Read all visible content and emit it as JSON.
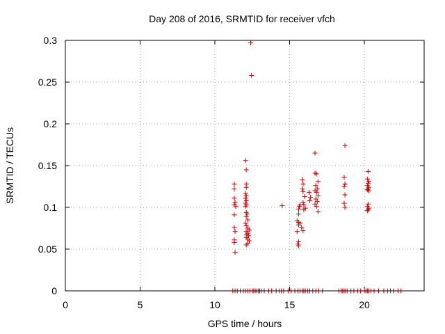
{
  "chart_data": {
    "type": "scatter",
    "title": "Day 208 of 2016, SRMTID for receiver vfch",
    "xlabel": "GPS time / hours",
    "ylabel": "SRMTID / TECUs",
    "xlim": [
      0,
      24
    ],
    "ylim": [
      0,
      0.3
    ],
    "x_ticks": [
      0,
      5,
      10,
      15,
      20
    ],
    "x_tick_labels": [
      "0",
      "5",
      "10",
      "15",
      "20"
    ],
    "y_ticks": [
      0,
      0.05,
      0.1,
      0.15,
      0.2,
      0.25,
      0.3
    ],
    "y_tick_labels": [
      "0",
      "0.05",
      "0.1",
      "0.15",
      "0.2",
      "0.25",
      "0.3"
    ],
    "grid": true,
    "marker": "+",
    "color": "#cc0000",
    "series": [
      {
        "name": "SRMTID",
        "points": [
          [
            11.3,
            0.128
          ],
          [
            11.3,
            0.122
          ],
          [
            11.3,
            0.111
          ],
          [
            11.35,
            0.106
          ],
          [
            11.3,
            0.103
          ],
          [
            11.4,
            0.101
          ],
          [
            11.3,
            0.091
          ],
          [
            11.3,
            0.076
          ],
          [
            11.35,
            0.071
          ],
          [
            11.3,
            0.061
          ],
          [
            11.3,
            0.058
          ],
          [
            11.35,
            0.046
          ],
          [
            12.05,
            0.156
          ],
          [
            12.1,
            0.145
          ],
          [
            12.1,
            0.128
          ],
          [
            12.1,
            0.124
          ],
          [
            12.05,
            0.117
          ],
          [
            12.1,
            0.114
          ],
          [
            12.05,
            0.111
          ],
          [
            12.1,
            0.108
          ],
          [
            12.05,
            0.105
          ],
          [
            12.1,
            0.103
          ],
          [
            12.05,
            0.101
          ],
          [
            12.1,
            0.094
          ],
          [
            12.15,
            0.092
          ],
          [
            12.1,
            0.089
          ],
          [
            12.2,
            0.085
          ],
          [
            12.05,
            0.081
          ],
          [
            12.1,
            0.078
          ],
          [
            12.2,
            0.075
          ],
          [
            12.3,
            0.073
          ],
          [
            12.1,
            0.071
          ],
          [
            12.2,
            0.069
          ],
          [
            12.1,
            0.067
          ],
          [
            12.25,
            0.066
          ],
          [
            12.1,
            0.064
          ],
          [
            12.2,
            0.062
          ],
          [
            12.3,
            0.06
          ],
          [
            12.2,
            0.057
          ],
          [
            12.1,
            0.055
          ],
          [
            12.4,
            0.297
          ],
          [
            12.45,
            0.258
          ],
          [
            14.5,
            0.102
          ],
          [
            15.6,
            0.092
          ],
          [
            15.5,
            0.084
          ],
          [
            15.6,
            0.082
          ],
          [
            15.7,
            0.081
          ],
          [
            15.6,
            0.079
          ],
          [
            15.5,
            0.071
          ],
          [
            15.6,
            0.059
          ],
          [
            15.55,
            0.056
          ],
          [
            15.6,
            0.054
          ],
          [
            15.7,
            0.103
          ],
          [
            15.65,
            0.101
          ],
          [
            15.6,
            0.098
          ],
          [
            15.8,
            0.076
          ],
          [
            15.9,
            0.072
          ],
          [
            15.85,
            0.133
          ],
          [
            15.9,
            0.128
          ],
          [
            15.85,
            0.122
          ],
          [
            15.9,
            0.119
          ],
          [
            16.0,
            0.113
          ],
          [
            15.9,
            0.106
          ],
          [
            16.05,
            0.099
          ],
          [
            15.95,
            0.097
          ],
          [
            15.95,
            0.103
          ],
          [
            16.3,
            0.118
          ],
          [
            16.4,
            0.112
          ],
          [
            16.35,
            0.108
          ],
          [
            16.7,
            0.165
          ],
          [
            16.7,
            0.141
          ],
          [
            16.8,
            0.14
          ],
          [
            16.9,
            0.131
          ],
          [
            16.75,
            0.126
          ],
          [
            16.85,
            0.122
          ],
          [
            16.7,
            0.12
          ],
          [
            16.8,
            0.118
          ],
          [
            16.9,
            0.114
          ],
          [
            16.75,
            0.11
          ],
          [
            16.85,
            0.107
          ],
          [
            16.7,
            0.104
          ],
          [
            16.8,
            0.101
          ],
          [
            16.9,
            0.095
          ],
          [
            18.7,
            0.174
          ],
          [
            18.65,
            0.136
          ],
          [
            18.7,
            0.128
          ],
          [
            18.65,
            0.125
          ],
          [
            18.7,
            0.115
          ],
          [
            18.65,
            0.105
          ],
          [
            18.7,
            0.1
          ],
          [
            20.25,
            0.143
          ],
          [
            20.2,
            0.134
          ],
          [
            20.3,
            0.131
          ],
          [
            20.25,
            0.129
          ],
          [
            20.2,
            0.126
          ],
          [
            20.3,
            0.124
          ],
          [
            20.25,
            0.122
          ],
          [
            20.2,
            0.121
          ],
          [
            20.3,
            0.12
          ],
          [
            20.25,
            0.104
          ],
          [
            20.2,
            0.101
          ],
          [
            20.3,
            0.099
          ],
          [
            20.25,
            0.097
          ],
          [
            20.2,
            0.096
          ],
          [
            11.2,
            0
          ],
          [
            11.35,
            0
          ],
          [
            11.5,
            0
          ],
          [
            11.7,
            0
          ],
          [
            11.9,
            0
          ],
          [
            12.05,
            0
          ],
          [
            12.2,
            0
          ],
          [
            12.35,
            0
          ],
          [
            12.5,
            0
          ],
          [
            12.6,
            0
          ],
          [
            12.7,
            0
          ],
          [
            12.8,
            0
          ],
          [
            12.9,
            0
          ],
          [
            13.0,
            0
          ],
          [
            13.1,
            0
          ],
          [
            13.3,
            0
          ],
          [
            13.6,
            0
          ],
          [
            13.8,
            0
          ],
          [
            14.1,
            0
          ],
          [
            14.3,
            0
          ],
          [
            14.45,
            0
          ],
          [
            14.6,
            0
          ],
          [
            14.9,
            0
          ],
          [
            15.1,
            0
          ],
          [
            15.35,
            0
          ],
          [
            15.55,
            0
          ],
          [
            15.7,
            0
          ],
          [
            15.85,
            0
          ],
          [
            15.95,
            0
          ],
          [
            16.05,
            0
          ],
          [
            16.2,
            0
          ],
          [
            16.35,
            0
          ],
          [
            16.55,
            0
          ],
          [
            16.75,
            0
          ],
          [
            16.95,
            0
          ],
          [
            17.2,
            0
          ],
          [
            18.3,
            0
          ],
          [
            18.45,
            0
          ],
          [
            18.55,
            0
          ],
          [
            18.65,
            0
          ],
          [
            18.75,
            0
          ],
          [
            18.85,
            0
          ],
          [
            19.1,
            0
          ],
          [
            19.3,
            0
          ],
          [
            19.55,
            0
          ],
          [
            19.75,
            0
          ],
          [
            20.0,
            0
          ],
          [
            20.1,
            0
          ],
          [
            20.2,
            0
          ],
          [
            20.3,
            0
          ],
          [
            20.45,
            0
          ],
          [
            20.65,
            0
          ],
          [
            20.95,
            0
          ],
          [
            21.3,
            0
          ],
          [
            21.55,
            0
          ],
          [
            21.75,
            0
          ],
          [
            21.95,
            0
          ],
          [
            22.25,
            0
          ],
          [
            22.45,
            0
          ]
        ]
      }
    ]
  }
}
